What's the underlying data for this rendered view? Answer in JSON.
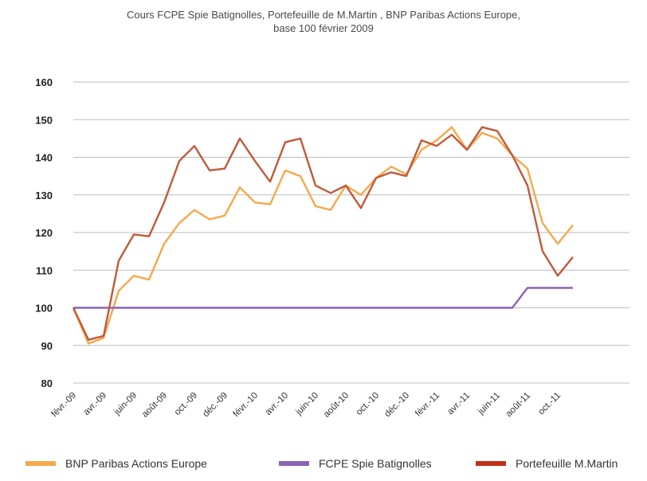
{
  "title": {
    "line1": "Cours FCPE Spie Batignolles, Portefeuille de M.Martin , BNP Paribas Actions Europe,",
    "line2": "base 100 février 2009"
  },
  "colors": {
    "bnp": "#f5a94c",
    "fcpe": "#8a63b6",
    "martin": "#c05a3a",
    "legend_martin": "#c0301a",
    "grid": "#bdbdbd"
  },
  "chart_data": {
    "type": "line",
    "ylim": [
      80,
      160
    ],
    "yticks": [
      80,
      90,
      100,
      110,
      120,
      130,
      140,
      150,
      160
    ],
    "xtick_labels": [
      "févr.-09",
      "avr.-09",
      "juin-09",
      "août-09",
      "oct.-09",
      "déc.-09",
      "févr.-10",
      "avr.-10",
      "juin-10",
      "août-10",
      "oct.-10",
      "déc.-10",
      "févr.-11",
      "avr.-11",
      "juin-11",
      "août-11",
      "oct.-11"
    ],
    "x": [
      "févr.-09",
      "mars-09",
      "avr.-09",
      "mai-09",
      "juin-09",
      "juil.-09",
      "août-09",
      "sept.-09",
      "oct.-09",
      "nov.-09",
      "déc.-09",
      "janv.-10",
      "févr.-10",
      "mars-10",
      "avr.-10",
      "mai-10",
      "juin-10",
      "juil.-10",
      "août-10",
      "sept.-10",
      "oct.-10",
      "nov.-10",
      "déc.-10",
      "janv.-11",
      "févr.-11",
      "mars-11",
      "avr.-11",
      "mai-11",
      "juin-11",
      "juil.-11",
      "août-11",
      "sept.-11",
      "oct.-11",
      "nov.-11"
    ],
    "series": [
      {
        "name": "BNP Paribas Actions Europe",
        "color_key": "bnp",
        "values": [
          100,
          90.5,
          92,
          104.5,
          108.5,
          107.5,
          117,
          122.5,
          126,
          123.5,
          124.5,
          132,
          128,
          127.5,
          136.5,
          135,
          127,
          126,
          132.5,
          130,
          134.5,
          137.5,
          135.5,
          142,
          144.5,
          148,
          142,
          146.5,
          145,
          140.5,
          137,
          122.5,
          117,
          122
        ]
      },
      {
        "name": "FCPE Spie Batignolles",
        "color_key": "fcpe",
        "values": [
          100,
          100,
          100,
          100,
          100,
          100,
          100,
          100,
          100,
          100,
          100,
          100,
          100,
          100,
          100,
          100,
          100,
          100,
          100,
          100,
          100,
          100,
          100,
          100,
          100,
          100,
          100,
          100,
          100,
          100,
          105.3,
          105.3,
          105.3,
          105.3
        ]
      },
      {
        "name": "Portefeuille M.Martin",
        "color_key": "martin",
        "values": [
          100,
          91.5,
          92.5,
          112.5,
          119.5,
          119,
          128,
          139,
          143,
          136.5,
          137,
          145,
          139,
          133.5,
          144,
          145,
          132.5,
          130.5,
          132.5,
          126.5,
          134.5,
          136,
          135,
          144.5,
          143,
          146,
          142,
          148,
          147,
          140.5,
          132.5,
          115,
          108.5,
          113.5
        ]
      }
    ],
    "legend": [
      {
        "label": "BNP Paribas Actions Europe",
        "color_key": "bnp"
      },
      {
        "label": "FCPE Spie Batignolles",
        "color_key": "fcpe"
      },
      {
        "label": "Portefeuille M.Martin",
        "color_key": "legend_martin"
      }
    ],
    "grid": true,
    "legend_position": "bottom"
  }
}
